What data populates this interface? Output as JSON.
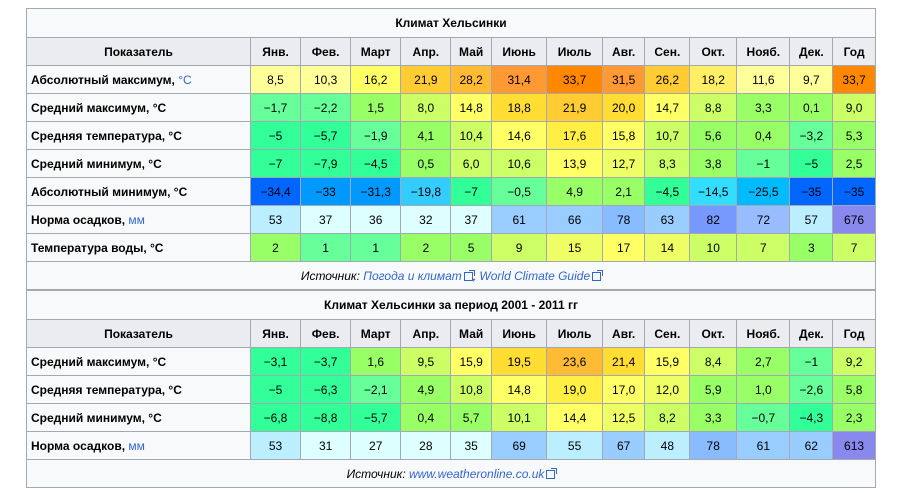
{
  "months": [
    "Янв.",
    "Фев.",
    "Март",
    "Апр.",
    "Май",
    "Июнь",
    "Июль",
    "Авг.",
    "Сен.",
    "Окт.",
    "Нояб.",
    "Дек.",
    "Год"
  ],
  "col_header": "Показатель",
  "table1": {
    "title": "Климат Хельсинки",
    "rows": [
      {
        "label": "Абсолютный максимум, ",
        "unit": "°C",
        "vals": [
          "8,5",
          "10,3",
          "16,2",
          "21,9",
          "28,2",
          "31,4",
          "33,7",
          "31,5",
          "26,2",
          "18,2",
          "11,6",
          "9,7",
          "33,7"
        ],
        "colors": [
          "#ffff99",
          "#ffff99",
          "#ffff66",
          "#ffcc33",
          "#ffbb33",
          "#ff9933",
          "#ff8800",
          "#ff9933",
          "#ffcc33",
          "#ffee66",
          "#ffff99",
          "#ffff99",
          "#ff8800"
        ]
      },
      {
        "label": "Средний максимум, °C",
        "unit": "",
        "vals": [
          "−1,7",
          "−2,2",
          "1,5",
          "8,0",
          "14,8",
          "18,8",
          "21,9",
          "20,0",
          "14,7",
          "8,8",
          "3,3",
          "0,1",
          "9,0"
        ],
        "colors": [
          "#66ff99",
          "#66ff99",
          "#99ff66",
          "#ccff66",
          "#ffff66",
          "#ffdd33",
          "#ffcc33",
          "#ffdd33",
          "#ffff66",
          "#ccff66",
          "#99ff66",
          "#99ff66",
          "#ccff66"
        ]
      },
      {
        "label": "Средняя температура, °C",
        "unit": "",
        "vals": [
          "−5",
          "−5,7",
          "−1,9",
          "4,1",
          "10,4",
          "14,6",
          "17,6",
          "15,8",
          "10,7",
          "5,6",
          "0,4",
          "−3,2",
          "5,3"
        ],
        "colors": [
          "#33ff99",
          "#33ff99",
          "#66ff99",
          "#99ff66",
          "#ccff66",
          "#ffff66",
          "#ffee44",
          "#ffff66",
          "#ccff66",
          "#99ff66",
          "#99ff66",
          "#66ff99",
          "#99ff66"
        ]
      },
      {
        "label": "Средний минимум, °C",
        "unit": "",
        "vals": [
          "−7",
          "−7,9",
          "−4,5",
          "0,5",
          "6,0",
          "10,6",
          "13,9",
          "12,7",
          "8,3",
          "3,8",
          "−1",
          "−5",
          "2,5"
        ],
        "colors": [
          "#33ff99",
          "#33ff99",
          "#33ff99",
          "#99ff66",
          "#ccff66",
          "#ccff66",
          "#ffff66",
          "#eeff66",
          "#ccff66",
          "#99ff66",
          "#66ff99",
          "#33ff99",
          "#99ff66"
        ]
      },
      {
        "label": "Абсолютный минимум, °C",
        "unit": "",
        "vals": [
          "−34,4",
          "−33",
          "−31,3",
          "−19,8",
          "−7",
          "−0,5",
          "4,9",
          "2,1",
          "−4,5",
          "−14,5",
          "−25,5",
          "−35",
          "−35"
        ],
        "colors": [
          "#0066ff",
          "#0099ff",
          "#0099ff",
          "#33ccff",
          "#33ff99",
          "#66ff99",
          "#99ff66",
          "#99ff66",
          "#33ff99",
          "#33ddff",
          "#00bbff",
          "#0066ff",
          "#0066ff"
        ]
      }
    ],
    "precip": {
      "label": "Норма осадков, ",
      "unit": "мм",
      "vals": [
        "53",
        "37",
        "36",
        "32",
        "37",
        "61",
        "66",
        "78",
        "63",
        "82",
        "72",
        "57",
        "676"
      ],
      "colors": [
        "#bbeeff",
        "#ddffff",
        "#ddffff",
        "#ddffff",
        "#ddffff",
        "#99ccff",
        "#99ccff",
        "#88bbff",
        "#99ccff",
        "#7799ff",
        "#99bbff",
        "#bbeeff",
        "#8888ee"
      ]
    },
    "water": {
      "label": "Температура воды, °C",
      "unit": "",
      "vals": [
        "2",
        "1",
        "1",
        "2",
        "5",
        "9",
        "15",
        "17",
        "14",
        "10",
        "7",
        "3",
        "7"
      ],
      "colors": [
        "#99ff66",
        "#66ff99",
        "#66ff99",
        "#99ff66",
        "#99ff66",
        "#ccff66",
        "#eeff66",
        "#ffff66",
        "#eeff66",
        "#ccff66",
        "#ccff66",
        "#99ff66",
        "#ccff66"
      ]
    },
    "source_prefix": "Источник: ",
    "source_links": [
      "Погода и климат",
      "World Climate Guide"
    ],
    "source_sep": ", "
  },
  "table2": {
    "title": "Климат Хельсинки за период 2001 - 2011 гг",
    "rows": [
      {
        "label": "Средний максимум, °C",
        "unit": "",
        "vals": [
          "−3,1",
          "−3,7",
          "1,6",
          "9,5",
          "15,9",
          "19,5",
          "23,6",
          "21,4",
          "15,9",
          "8,4",
          "2,7",
          "−1",
          "9,2"
        ],
        "colors": [
          "#33ff99",
          "#33ff99",
          "#99ff66",
          "#ccff66",
          "#ffff66",
          "#ffdd33",
          "#ffbb33",
          "#ffdd33",
          "#ffff66",
          "#ccff66",
          "#99ff66",
          "#66ff99",
          "#ccff66"
        ]
      },
      {
        "label": "Средняя температура, °C",
        "unit": "",
        "vals": [
          "−5",
          "−6,3",
          "−2,1",
          "4,9",
          "10,8",
          "14,8",
          "19,0",
          "17,0",
          "12,0",
          "5,9",
          "1,0",
          "−2,6",
          "5,8"
        ],
        "colors": [
          "#33ff99",
          "#33ff99",
          "#66ff99",
          "#99ff66",
          "#ccff66",
          "#ffff66",
          "#ffee44",
          "#ffff66",
          "#eeff66",
          "#99ff66",
          "#99ff66",
          "#66ff99",
          "#99ff66"
        ]
      },
      {
        "label": "Средний минимум, °C",
        "unit": "",
        "vals": [
          "−6,8",
          "−8,8",
          "−5,7",
          "0,4",
          "5,7",
          "10,1",
          "14,4",
          "12,5",
          "8,2",
          "3,3",
          "−0,7",
          "−4,3",
          "2,3"
        ],
        "colors": [
          "#33ff99",
          "#33ff99",
          "#33ff99",
          "#99ff66",
          "#99ff66",
          "#ccff66",
          "#ffff66",
          "#eeff66",
          "#ccff66",
          "#99ff66",
          "#66ff99",
          "#33ff99",
          "#99ff66"
        ]
      }
    ],
    "precip": {
      "label": "Норма осадков, ",
      "unit": "мм",
      "vals": [
        "53",
        "31",
        "27",
        "28",
        "35",
        "69",
        "55",
        "67",
        "48",
        "78",
        "61",
        "62",
        "613"
      ],
      "colors": [
        "#bbeeff",
        "#ddffff",
        "#ddffff",
        "#ddffff",
        "#ddffff",
        "#99ccff",
        "#bbeeff",
        "#99ccff",
        "#bbeeff",
        "#88bbff",
        "#99ccff",
        "#99ccff",
        "#8888ee"
      ]
    },
    "source_prefix": "Источник: ",
    "source_links": [
      "www.weatheronline.co.uk"
    ]
  }
}
